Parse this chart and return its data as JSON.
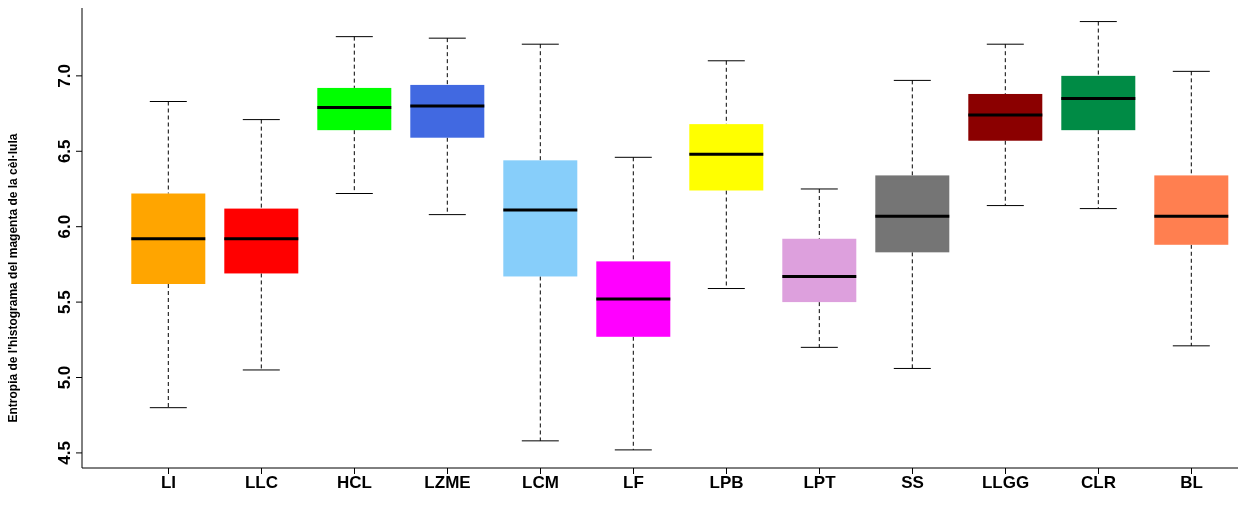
{
  "chart_data": {
    "type": "box",
    "ylabel": "Entropia de l'histograma del magenta de la cèl·lula",
    "categories": [
      "LI",
      "LLC",
      "HCL",
      "LZME",
      "LCM",
      "LF",
      "LPB",
      "LPT",
      "SS",
      "LLGG",
      "CLR",
      "BL"
    ],
    "colors": [
      "#ffa500",
      "#ff0000",
      "#00ff00",
      "#4169e1",
      "#87cefa",
      "#ff00ff",
      "#ffff00",
      "#dda0dd",
      "#757575",
      "#8b0000",
      "#008b45",
      "#ff7f50"
    ],
    "boxes": [
      {
        "low": 4.8,
        "q1": 5.62,
        "median": 5.92,
        "q3": 6.22,
        "high": 6.83
      },
      {
        "low": 5.05,
        "q1": 5.69,
        "median": 5.92,
        "q3": 6.12,
        "high": 6.71
      },
      {
        "low": 6.22,
        "q1": 6.64,
        "median": 6.79,
        "q3": 6.92,
        "high": 7.26
      },
      {
        "low": 6.08,
        "q1": 6.59,
        "median": 6.8,
        "q3": 6.94,
        "high": 7.25
      },
      {
        "low": 4.58,
        "q1": 5.67,
        "median": 6.11,
        "q3": 6.44,
        "high": 7.21
      },
      {
        "low": 4.52,
        "q1": 5.27,
        "median": 5.52,
        "q3": 5.77,
        "high": 6.46
      },
      {
        "low": 5.59,
        "q1": 6.24,
        "median": 6.48,
        "q3": 6.68,
        "high": 7.1
      },
      {
        "low": 5.2,
        "q1": 5.5,
        "median": 5.67,
        "q3": 5.92,
        "high": 6.25
      },
      {
        "low": 5.06,
        "q1": 5.83,
        "median": 6.07,
        "q3": 6.34,
        "high": 6.97
      },
      {
        "low": 6.14,
        "q1": 6.57,
        "median": 6.74,
        "q3": 6.88,
        "high": 7.21
      },
      {
        "low": 6.12,
        "q1": 6.64,
        "median": 6.85,
        "q3": 7.0,
        "high": 7.36
      },
      {
        "low": 5.21,
        "q1": 5.88,
        "median": 6.07,
        "q3": 6.34,
        "high": 7.03
      }
    ],
    "ylim": [
      4.4,
      7.45
    ],
    "yticks": [
      4.5,
      {
        "value": 5,
        "label": "5.0"
      },
      5.5,
      {
        "value": 6,
        "label": "6.0"
      },
      6.5,
      {
        "value": 7,
        "label": "7.0"
      }
    ]
  }
}
